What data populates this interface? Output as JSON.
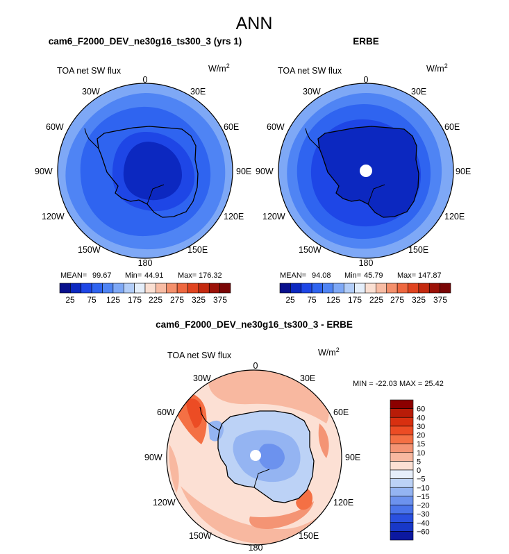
{
  "figure_title": "ANN",
  "panels": [
    {
      "title": "cam6_F2000_DEV_ne30g16_ts300_3 (yrs 1)",
      "variable": "TOA net SW flux",
      "units": "W/m",
      "units_sup": "2",
      "stats": {
        "mean_label": "MEAN=",
        "mean": "99.67",
        "min_label": "Min=",
        "min": "44.91",
        "max_label": "Max=",
        "max": "176.32"
      },
      "colorbar_ticks": [
        "25",
        "75",
        "125",
        "175",
        "225",
        "275",
        "325",
        "375"
      ],
      "lon_labels": [
        "0",
        "30E",
        "60E",
        "90E",
        "120E",
        "150E",
        "180",
        "150W",
        "120W",
        "90W",
        "60W",
        "30W"
      ],
      "pole_hole": false
    },
    {
      "title": "ERBE",
      "variable": "TOA net SW flux",
      "units": "W/m",
      "units_sup": "2",
      "stats": {
        "mean_label": "MEAN=",
        "mean": "94.08",
        "min_label": "Min=",
        "min": "45.79",
        "max_label": "Max=",
        "max": "147.87"
      },
      "colorbar_ticks": [
        "25",
        "75",
        "125",
        "175",
        "225",
        "275",
        "325",
        "375"
      ],
      "lon_labels": [
        "0",
        "30E",
        "60E",
        "90E",
        "120E",
        "150E",
        "180",
        "150W",
        "120W",
        "90W",
        "60W",
        "30W"
      ],
      "pole_hole": true
    }
  ],
  "diff_panel": {
    "title": "cam6_F2000_DEV_ne30g16_ts300_3 - ERBE",
    "variable": "TOA net SW flux",
    "units": "W/m",
    "units_sup": "2",
    "stats_text": "MIN = -22.03 MAX =  25.42",
    "colorbar_labels": [
      "60",
      "40",
      "30",
      "20",
      "15",
      "10",
      "5",
      "0",
      "−5",
      "−10",
      "−15",
      "−20",
      "−30",
      "−40",
      "−60"
    ],
    "lon_labels": [
      "0",
      "30E",
      "60E",
      "90E",
      "120E",
      "150E",
      "180",
      "150W",
      "120W",
      "90W",
      "60W",
      "30W"
    ]
  },
  "colors": {
    "abs_scale": [
      "#08108c",
      "#0c28c0",
      "#1e46e6",
      "#2f64f0",
      "#4f84f4",
      "#7ea8f6",
      "#b2cdf8",
      "#e4eefa",
      "#fadfd2",
      "#f8bca4",
      "#f4906c",
      "#ee6840",
      "#e04420",
      "#c42a10",
      "#9c1208",
      "#7a0606"
    ],
    "diff_scale_top_to_bottom": [
      "#8c0000",
      "#b81c08",
      "#d83010",
      "#ec4c24",
      "#f47044",
      "#f49474",
      "#f8b8a0",
      "#fce0d4",
      "#e6eefa",
      "#bcd2f6",
      "#94b4f2",
      "#6c92ee",
      "#4a74ea",
      "#2a50e0",
      "#1838c8",
      "#0c18a0"
    ]
  },
  "chart_data": [
    {
      "type": "heatmap",
      "projection": "south-polar-stereographic",
      "title": "cam6_F2000_DEV_ne30g16_ts300_3 (yrs 1)",
      "variable": "TOA net SW flux",
      "units": "W/m2",
      "color_levels": [
        25,
        50,
        75,
        100,
        125,
        150,
        175,
        200,
        225,
        250,
        275,
        300,
        325,
        350,
        375
      ],
      "bands": [
        {
          "region": "outer ocean ring",
          "value": 112
        },
        {
          "region": "mid ocean ring",
          "value": 95
        },
        {
          "region": "inner ring / coast",
          "value": 80
        },
        {
          "region": "Antarctic interior",
          "value": 58
        }
      ],
      "mean": 99.67,
      "min": 44.91,
      "max": 176.32
    },
    {
      "type": "heatmap",
      "projection": "south-polar-stereographic",
      "title": "ERBE",
      "variable": "TOA net SW flux",
      "units": "W/m2",
      "color_levels": [
        25,
        50,
        75,
        100,
        125,
        150,
        175,
        200,
        225,
        250,
        275,
        300,
        325,
        350,
        375
      ],
      "bands": [
        {
          "region": "outer ocean ring",
          "value": 110
        },
        {
          "region": "mid ocean ring",
          "value": 90
        },
        {
          "region": "inner ring / coast",
          "value": 72
        },
        {
          "region": "Antarctic interior",
          "value": 55
        }
      ],
      "mean": 94.08,
      "min": 45.79,
      "max": 147.87
    },
    {
      "type": "heatmap",
      "projection": "south-polar-stereographic",
      "title": "cam6_F2000_DEV_ne30g16_ts300_3 - ERBE",
      "variable": "TOA net SW flux",
      "units": "W/m2",
      "color_levels": [
        -60,
        -40,
        -30,
        -20,
        -15,
        -10,
        -5,
        0,
        5,
        10,
        15,
        20,
        30,
        40,
        60
      ],
      "min": -22.03,
      "max": 25.42
    }
  ]
}
